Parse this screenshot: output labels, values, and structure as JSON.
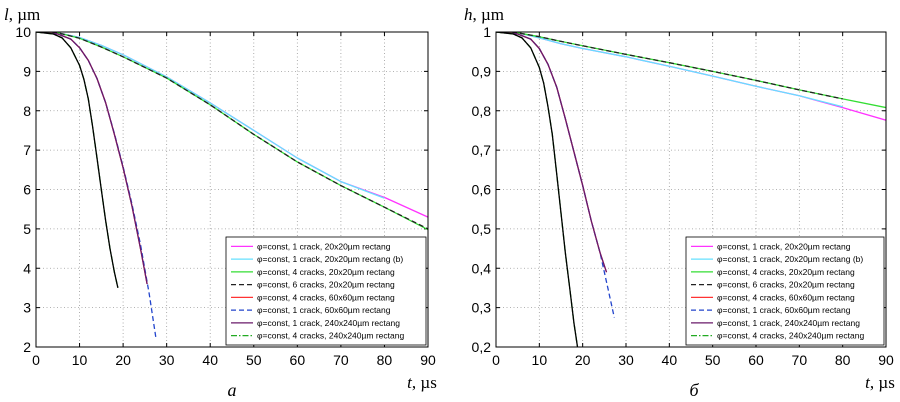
{
  "chart_data": [
    {
      "type": "line",
      "panel_label": "а",
      "ylabel_var": "l",
      "ylabel_unit": ", µm",
      "xlabel_var": "t",
      "xlabel_unit": ", µs",
      "xlim": [
        0,
        90
      ],
      "ylim": [
        2,
        10
      ],
      "xticks": [
        "0",
        "10",
        "20",
        "30",
        "40",
        "50",
        "60",
        "70",
        "80",
        "90"
      ],
      "yticks": [
        "2",
        "3",
        "4",
        "5",
        "6",
        "7",
        "8",
        "9",
        "10"
      ],
      "grid": true,
      "legend_position": "bottom-right",
      "series": [
        {
          "name": "φ=const, 1 crack, 20x20µm rectang",
          "color": "#ff33ff",
          "dash": "solid",
          "x": [
            0,
            5,
            10,
            15,
            20,
            30,
            40,
            50,
            60,
            70,
            80,
            90
          ],
          "y": [
            10,
            9.98,
            9.86,
            9.66,
            9.42,
            8.86,
            8.2,
            7.5,
            6.8,
            6.2,
            5.8,
            5.3
          ]
        },
        {
          "name": "φ=const, 1 crack, 20x20µm rectang (b)",
          "color": "#66e0ff",
          "dash": "solid",
          "x": [
            0,
            5,
            10,
            15,
            20,
            30,
            40,
            50,
            60,
            70,
            80
          ],
          "y": [
            10,
            9.98,
            9.86,
            9.66,
            9.42,
            8.86,
            8.2,
            7.5,
            6.8,
            6.2,
            5.78
          ]
        },
        {
          "name": "φ=const, 4 cracks, 20x20µm rectang",
          "color": "#33dd33",
          "dash": "solid",
          "x": [
            0,
            5,
            10,
            15,
            20,
            30,
            40,
            50,
            60,
            70,
            80,
            90
          ],
          "y": [
            10,
            9.98,
            9.84,
            9.62,
            9.37,
            8.83,
            8.15,
            7.4,
            6.7,
            6.1,
            5.55,
            4.98
          ]
        },
        {
          "name": "φ=const, 6 cracks, 20x20µm rectang",
          "color": "#222222",
          "dash": "dashed",
          "x": [
            0,
            5,
            10,
            15,
            20,
            30,
            40,
            50,
            60,
            70,
            80,
            90
          ],
          "y": [
            10,
            9.98,
            9.84,
            9.62,
            9.37,
            8.83,
            8.15,
            7.4,
            6.7,
            6.1,
            5.55,
            5.0
          ]
        },
        {
          "name": "φ=const, 4 cracks, 60x60µm rectang",
          "color": "#ff3333",
          "dash": "solid",
          "x": [
            0,
            5,
            8,
            10,
            12,
            14,
            16,
            18,
            20,
            22,
            24,
            25.5
          ],
          "y": [
            10,
            9.95,
            9.82,
            9.6,
            9.28,
            8.82,
            8.2,
            7.4,
            6.55,
            5.6,
            4.5,
            3.6
          ]
        },
        {
          "name": "φ=const, 1 crack, 60x60µm rectang",
          "color": "#2244cc",
          "dash": "dashed",
          "x": [
            0,
            5,
            8,
            10,
            12,
            14,
            16,
            18,
            20,
            22,
            24,
            26,
            27.5
          ],
          "y": [
            10,
            9.95,
            9.82,
            9.6,
            9.28,
            8.82,
            8.2,
            7.42,
            6.58,
            5.65,
            4.6,
            3.35,
            2.25
          ]
        },
        {
          "name": "φ=const, 1 crack, 240x240µm rectang",
          "color": "#6a1a6a",
          "dash": "solid",
          "x": [
            0,
            5,
            8,
            10,
            12,
            14,
            16,
            18,
            20,
            22,
            24,
            25.5
          ],
          "y": [
            10,
            9.95,
            9.82,
            9.6,
            9.28,
            8.82,
            8.2,
            7.4,
            6.55,
            5.6,
            4.5,
            3.6
          ]
        },
        {
          "name": "φ=const, 4 cracks, 240x240µm rectang",
          "color": "#22aa22",
          "dash": "dashdot",
          "x": [
            0,
            4,
            6,
            8,
            10,
            11,
            12,
            13,
            14,
            15,
            16,
            17,
            18,
            18.8
          ],
          "y": [
            10,
            9.95,
            9.85,
            9.6,
            9.15,
            8.8,
            8.3,
            7.6,
            6.8,
            6.0,
            5.2,
            4.5,
            3.9,
            3.5
          ]
        },
        {
          "name": "",
          "color": "#000000",
          "dash": "solid",
          "legend": false,
          "x": [
            0,
            4,
            6,
            8,
            10,
            11,
            12,
            13,
            14,
            15,
            16,
            17,
            18,
            18.8
          ],
          "y": [
            10,
            9.95,
            9.85,
            9.6,
            9.15,
            8.8,
            8.3,
            7.6,
            6.8,
            6.0,
            5.2,
            4.5,
            3.9,
            3.5
          ]
        }
      ]
    },
    {
      "type": "line",
      "panel_label": "б",
      "ylabel_var": "h",
      "ylabel_unit": ", µm",
      "xlabel_var": "t",
      "xlabel_unit": ", µs",
      "xlim": [
        0,
        90
      ],
      "ylim": [
        0.2,
        1.0
      ],
      "xticks": [
        "0",
        "10",
        "20",
        "30",
        "40",
        "50",
        "60",
        "70",
        "80",
        "90"
      ],
      "yticks": [
        "0,2",
        "0,3",
        "0,4",
        "0,5",
        "0,6",
        "0,7",
        "0,8",
        "0,9",
        "1"
      ],
      "grid": true,
      "legend_position": "bottom-right",
      "series": [
        {
          "name": "φ=const, 1 crack, 20x20µm rectang",
          "color": "#ff33ff",
          "dash": "solid",
          "x": [
            0,
            5,
            10,
            15,
            20,
            30,
            40,
            50,
            60,
            70,
            80,
            90
          ],
          "y": [
            1.0,
            0.998,
            0.985,
            0.97,
            0.958,
            0.937,
            0.913,
            0.888,
            0.862,
            0.838,
            0.808,
            0.776
          ]
        },
        {
          "name": "φ=const, 1 crack, 20x20µm rectang (b)",
          "color": "#66e0ff",
          "dash": "solid",
          "x": [
            0,
            5,
            10,
            15,
            20,
            30,
            40,
            50,
            60,
            70,
            80
          ],
          "y": [
            1.0,
            0.998,
            0.985,
            0.97,
            0.958,
            0.937,
            0.913,
            0.888,
            0.862,
            0.838,
            0.81
          ]
        },
        {
          "name": "φ=const, 4 cracks, 20x20µm rectang",
          "color": "#33dd33",
          "dash": "solid",
          "x": [
            0,
            5,
            10,
            15,
            20,
            30,
            40,
            50,
            60,
            70,
            80,
            90
          ],
          "y": [
            1.0,
            0.998,
            0.988,
            0.976,
            0.965,
            0.943,
            0.922,
            0.9,
            0.877,
            0.853,
            0.83,
            0.808
          ]
        },
        {
          "name": "φ=const, 6 cracks, 20x20µm rectang",
          "color": "#222222",
          "dash": "dashed",
          "x": [
            0,
            5,
            10,
            15,
            20,
            30,
            40,
            50,
            60,
            70,
            80
          ],
          "y": [
            1.0,
            0.998,
            0.988,
            0.976,
            0.965,
            0.943,
            0.922,
            0.9,
            0.877,
            0.853,
            0.83
          ]
        },
        {
          "name": "φ=const, 4 cracks, 60x60µm rectang",
          "color": "#ff3333",
          "dash": "solid",
          "x": [
            0,
            5,
            8,
            10,
            12,
            14,
            16,
            18,
            20,
            22,
            24,
            25.5
          ],
          "y": [
            1.0,
            0.995,
            0.982,
            0.958,
            0.918,
            0.86,
            0.78,
            0.695,
            0.61,
            0.52,
            0.44,
            0.39
          ]
        },
        {
          "name": "φ=const, 1 crack, 60x60µm rectang",
          "color": "#2244cc",
          "dash": "dashed",
          "x": [
            0,
            5,
            8,
            10,
            12,
            14,
            16,
            18,
            20,
            22,
            24,
            26,
            27.3
          ],
          "y": [
            1.0,
            0.995,
            0.982,
            0.958,
            0.918,
            0.86,
            0.78,
            0.695,
            0.61,
            0.52,
            0.44,
            0.34,
            0.275
          ]
        },
        {
          "name": "φ=const, 1 crack, 240x240µm rectang",
          "color": "#6a1a6a",
          "dash": "solid",
          "x": [
            0,
            5,
            8,
            10,
            12,
            14,
            16,
            18,
            20,
            22,
            24,
            25.5
          ],
          "y": [
            1.0,
            0.995,
            0.982,
            0.958,
            0.918,
            0.86,
            0.78,
            0.695,
            0.61,
            0.52,
            0.44,
            0.39
          ]
        },
        {
          "name": "φ=const, 4 cracks, 240x240µm rectang",
          "color": "#22aa22",
          "dash": "dashdot",
          "x": [
            0,
            4,
            6,
            8,
            10,
            11,
            12,
            13,
            14,
            15,
            16,
            17,
            18,
            18.8
          ],
          "y": [
            1.0,
            0.995,
            0.985,
            0.96,
            0.91,
            0.87,
            0.81,
            0.74,
            0.64,
            0.54,
            0.44,
            0.35,
            0.26,
            0.2
          ]
        },
        {
          "name": "",
          "color": "#000000",
          "dash": "solid",
          "legend": false,
          "x": [
            0,
            4,
            6,
            8,
            10,
            11,
            12,
            13,
            14,
            15,
            16,
            17,
            18,
            18.8
          ],
          "y": [
            1.0,
            0.995,
            0.985,
            0.96,
            0.91,
            0.87,
            0.81,
            0.74,
            0.64,
            0.54,
            0.44,
            0.35,
            0.26,
            0.2
          ]
        }
      ]
    }
  ]
}
